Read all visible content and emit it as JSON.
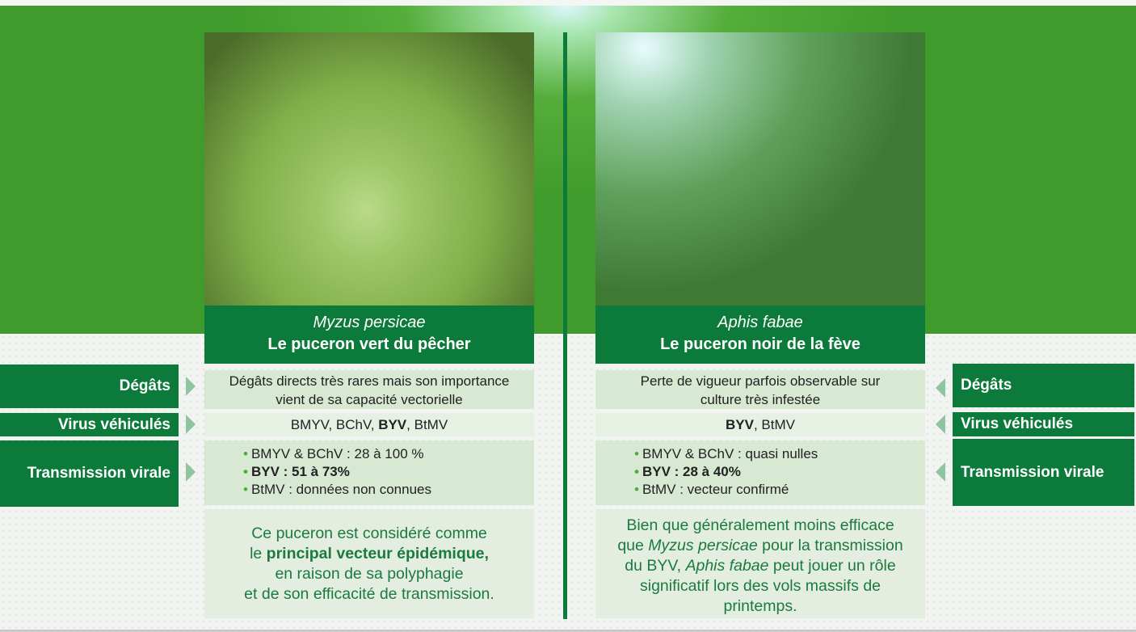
{
  "colors": {
    "dark_green": "#0b7a3a",
    "bright_green": "#3f9b2b",
    "row_light": "#d7e8d3",
    "text_green": "#1a7a40"
  },
  "labels": {
    "degats": "Dégâts",
    "virus": "Virus véhiculés",
    "transmission": "Transmission virale"
  },
  "left": {
    "scientific_name": "Myzus persicae",
    "common_name": "Le puceron vert du pêcher",
    "degats_l1": "Dégâts directs très rares mais son importance",
    "degats_l2": "vient de sa capacité vectorielle",
    "virus_a": "BMYV, BChV, ",
    "virus_b": "BYV",
    "virus_c": ", BtMV",
    "trans": [
      "BMYV & BChV : 28 à 100 %",
      "BYV : 51 à 73%",
      "BtMV : données non connues"
    ],
    "note_l1": "Ce puceron est considéré comme",
    "note_l2a": "le ",
    "note_l2b": "principal vecteur épidémique,",
    "note_l3": "en raison de sa polyphagie",
    "note_l4": "et de son efficacité de transmission."
  },
  "right": {
    "scientific_name": "Aphis fabae",
    "common_name": "Le puceron noir de la fève",
    "degats_l1": "Perte de vigueur parfois observable sur",
    "degats_l2": "culture très infestée",
    "virus_b": "BYV",
    "virus_c": ", BtMV",
    "trans": [
      "BMYV & BChV : quasi nulles",
      "BYV : 28 à 40%",
      "BtMV : vecteur confirmé"
    ],
    "note_l1": "Bien que généralement moins efficace",
    "note_l2a": "que ",
    "note_l2b": "Myzus persicae",
    "note_l2c": " pour la transmission",
    "note_l3a": "du BYV, ",
    "note_l3b": "Aphis fabae",
    "note_l3c": " peut jouer un rôle",
    "note_l4": "significatif lors des vols massifs de",
    "note_l5": "printemps."
  }
}
